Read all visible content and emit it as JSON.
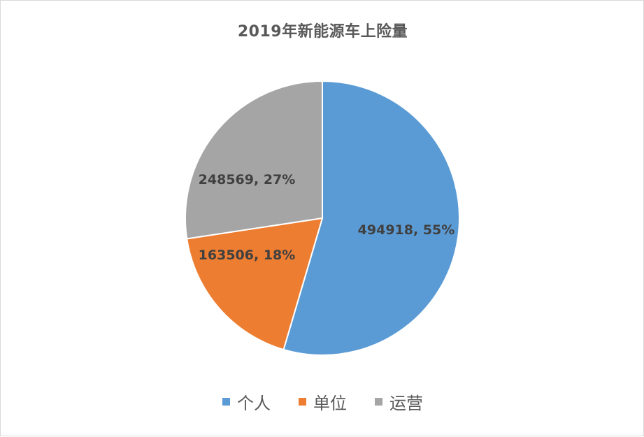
{
  "chart_data": {
    "type": "pie",
    "title": "2019年新能源车上险量",
    "legend_position": "bottom",
    "categories": [
      "个人",
      "单位",
      "运营"
    ],
    "values": [
      494918,
      163506,
      248569
    ],
    "percent_labels": [
      "55%",
      "18%",
      "27%"
    ],
    "data_labels": [
      "494918, 55%",
      "163506, 18%",
      "248569, 27%"
    ],
    "colors": [
      "#5b9bd5",
      "#ed7d31",
      "#a5a5a5"
    ],
    "start_angle": "12 o'clock, clockwise"
  }
}
